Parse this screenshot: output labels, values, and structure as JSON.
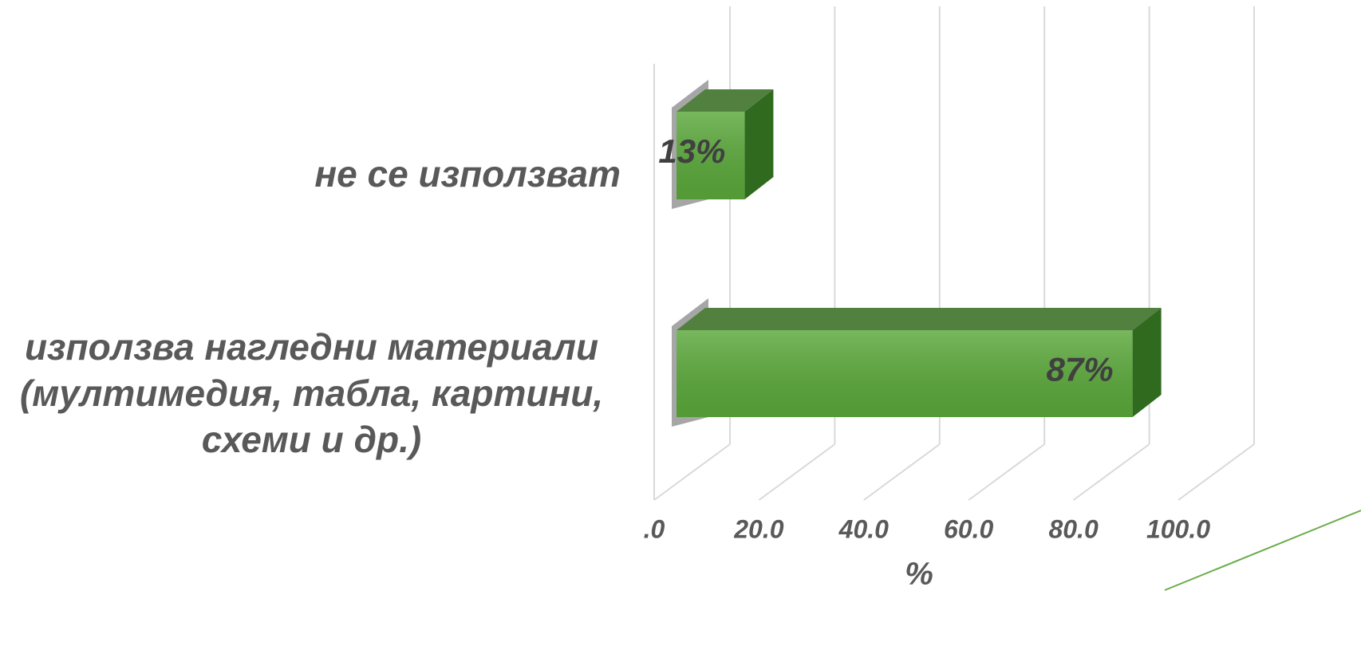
{
  "chart_data": {
    "type": "bar",
    "categories": [
      "не се използват",
      "използва нагледни материали (мултимедия, табла, картини, схеми и др.)"
    ],
    "values": [
      13,
      87
    ],
    "value_labels": [
      "13%",
      "87%"
    ],
    "color": "#5aa83a",
    "xlabel": "%",
    "xlim": [
      0,
      100
    ],
    "xticks": [
      {
        "value": 0,
        "label": ".0"
      },
      {
        "value": 20,
        "label": "20.0"
      },
      {
        "value": 40,
        "label": "40.0"
      },
      {
        "value": 60,
        "label": "60.0"
      },
      {
        "value": 80,
        "label": "80.0"
      },
      {
        "value": 100,
        "label": "100.0"
      }
    ],
    "grid": true
  }
}
